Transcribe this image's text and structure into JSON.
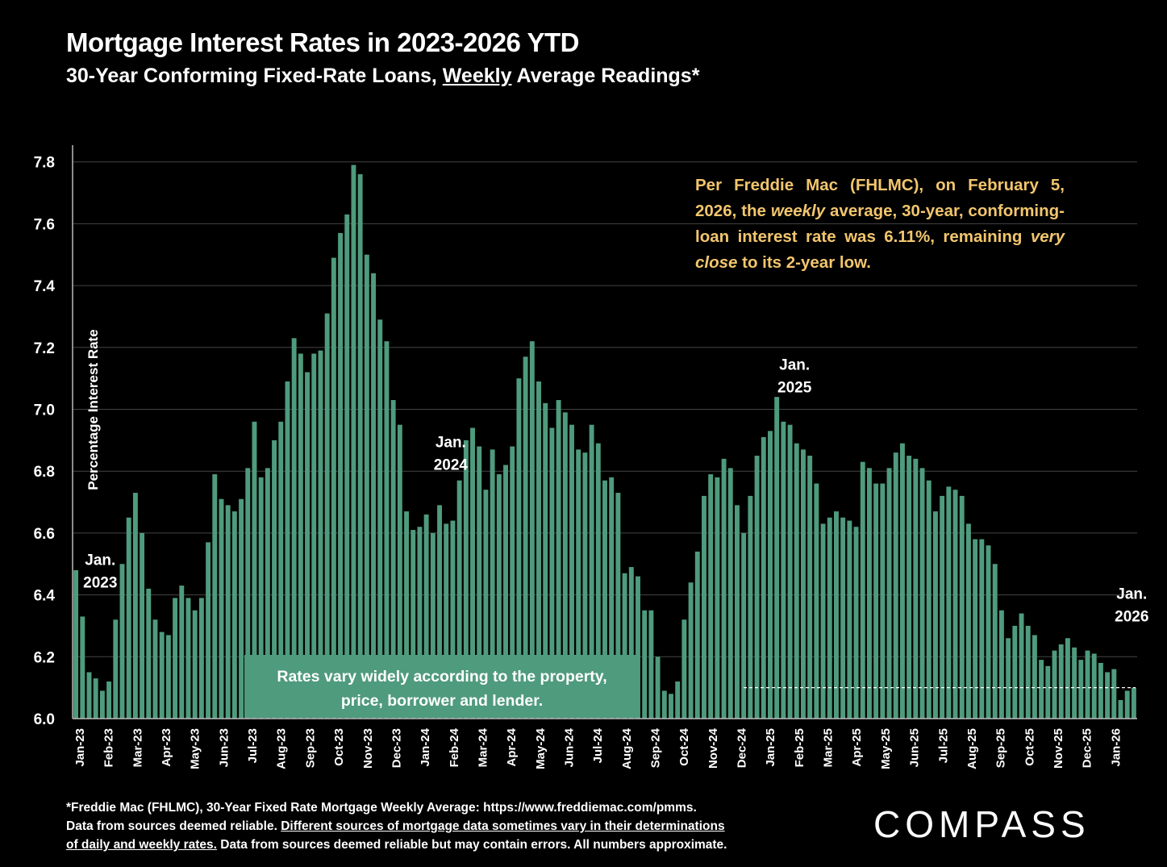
{
  "header": {
    "title": "Mortgage Interest Rates in 2023-2026 YTD",
    "subtitle_pre": "30-Year Conforming Fixed-Rate Loans, ",
    "subtitle_em": "Weekly",
    "subtitle_post": " Average Readings*"
  },
  "note": {
    "p1": "Per Freddie Mac (FHLMC), on February 5, 2026, the ",
    "em1": "weekly",
    "p2": " average, 30-year, conforming-loan interest rate was 6.11%, remaining ",
    "em2": "very close",
    "p3": " to its 2-year low."
  },
  "footer": {
    "line1": "*Freddie Mac (FHLMC), 30-Year Fixed Rate Mortgage Weekly Average:  https://www.freddiemac.com/pmms.",
    "line2a": "Data from sources deemed reliable. ",
    "line2u": "Different sources of mortgage data sometimes vary in their determinations",
    "line3u": "of daily and weekly rates.",
    "line3b": " Data from sources deemed reliable but may contain errors. All numbers approximate."
  },
  "logo": "COMPASS",
  "colors": {
    "bar": "#4f9b7d",
    "background": "#000000",
    "note": "#f2c66d",
    "grid": "#444444"
  },
  "chart_data": {
    "type": "bar",
    "ylabel": "Percentage Interest  Rate",
    "ylim": [
      6.0,
      7.85
    ],
    "yticks": [
      "6.0",
      "6.2",
      "6.4",
      "6.6",
      "6.8",
      "7.0",
      "7.2",
      "7.4",
      "7.6",
      "7.8"
    ],
    "xticks": [
      "Jan-23",
      "Feb-23",
      "Mar-23",
      "Apr-23",
      "May-23",
      "Jun-23",
      "Jul-23",
      "Aug-23",
      "Sep-23",
      "Oct-23",
      "Nov-23",
      "Dec-23",
      "Jan-24",
      "Feb-24",
      "Mar-24",
      "Apr-24",
      "May-24",
      "Jun-24",
      "Jul-24",
      "Aug-24",
      "Sep-24",
      "Oct-24",
      "Nov-24",
      "Dec-24",
      "Jan-25",
      "Feb-25",
      "Mar-25",
      "Apr-25",
      "May-25",
      "Jun-25",
      "Jul-25",
      "Aug-25",
      "Sep-25",
      "Oct-25",
      "Nov-25",
      "Dec-25",
      "Jan-26"
    ],
    "values": [
      6.48,
      6.33,
      6.15,
      6.13,
      6.09,
      6.12,
      6.32,
      6.5,
      6.65,
      6.73,
      6.6,
      6.42,
      6.32,
      6.28,
      6.27,
      6.39,
      6.43,
      6.39,
      6.35,
      6.39,
      6.57,
      6.79,
      6.71,
      6.69,
      6.67,
      6.71,
      6.81,
      6.96,
      6.78,
      6.81,
      6.9,
      6.96,
      7.09,
      7.23,
      7.18,
      7.12,
      7.18,
      7.19,
      7.31,
      7.49,
      7.57,
      7.63,
      7.79,
      7.76,
      7.5,
      7.44,
      7.29,
      7.22,
      7.03,
      6.95,
      6.67,
      6.61,
      6.62,
      6.66,
      6.6,
      6.69,
      6.63,
      6.64,
      6.77,
      6.9,
      6.94,
      6.88,
      6.74,
      6.87,
      6.79,
      6.82,
      6.88,
      7.1,
      7.17,
      7.22,
      7.09,
      7.02,
      6.94,
      7.03,
      6.99,
      6.95,
      6.87,
      6.86,
      6.95,
      6.89,
      6.77,
      6.78,
      6.73,
      6.47,
      6.49,
      6.46,
      6.35,
      6.35,
      6.2,
      6.09,
      6.08,
      6.12,
      6.32,
      6.44,
      6.54,
      6.72,
      6.79,
      6.78,
      6.84,
      6.81,
      6.69,
      6.6,
      6.72,
      6.85,
      6.91,
      6.93,
      7.04,
      6.96,
      6.95,
      6.89,
      6.87,
      6.85,
      6.76,
      6.63,
      6.65,
      6.67,
      6.65,
      6.64,
      6.62,
      6.83,
      6.81,
      6.76,
      6.76,
      6.81,
      6.86,
      6.89,
      6.85,
      6.84,
      6.81,
      6.77,
      6.67,
      6.72,
      6.75,
      6.74,
      6.72,
      6.63,
      6.58,
      6.58,
      6.56,
      6.5,
      6.35,
      6.26,
      6.3,
      6.34,
      6.3,
      6.27,
      6.19,
      6.17,
      6.22,
      6.24,
      6.26,
      6.23,
      6.19,
      6.22,
      6.21,
      6.18,
      6.15,
      6.16,
      6.06,
      6.09,
      6.1
    ],
    "annotations": [
      {
        "line1": "Jan.",
        "line2": "2023",
        "index": 1,
        "y": 6.44
      },
      {
        "line1": "Jan.",
        "line2": "2024",
        "index": 54,
        "y": 6.82
      },
      {
        "line1": "Jan.",
        "line2": "2025",
        "index": 106,
        "y": 7.07
      },
      {
        "line1": "Jan.",
        "line2": "2026",
        "index": 157,
        "y": 6.33
      }
    ],
    "callout": [
      "Rates vary widely according to the property,",
      "price, borrower and lender."
    ],
    "reference_line": 6.1,
    "grid": true
  }
}
